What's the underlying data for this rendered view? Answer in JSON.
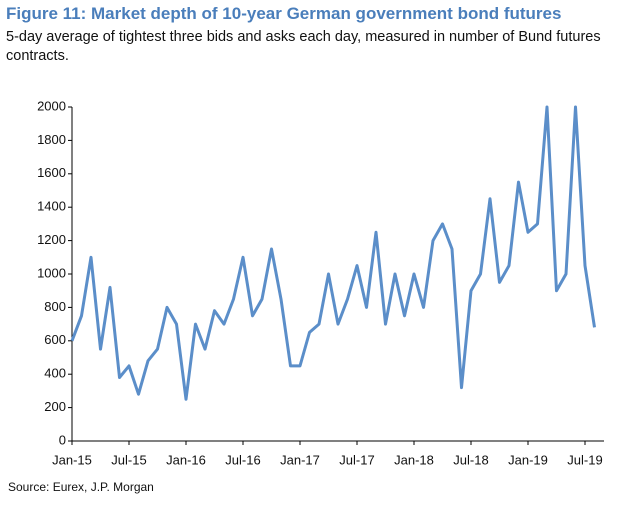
{
  "chart_data": {
    "type": "line",
    "title": "Figure 11: Market depth of 10-year German government bond futures",
    "subtitle": "5-day average of tightest three bids and asks each day, measured in number of Bund futures contracts.",
    "source": "Source: Eurex, J.P. Morgan",
    "x": [
      "2015-01",
      "2015-02",
      "2015-03",
      "2015-04",
      "2015-05",
      "2015-06",
      "2015-07",
      "2015-08",
      "2015-09",
      "2015-10",
      "2015-11",
      "2015-12",
      "2016-01",
      "2016-02",
      "2016-03",
      "2016-04",
      "2016-05",
      "2016-06",
      "2016-07",
      "2016-08",
      "2016-09",
      "2016-10",
      "2016-11",
      "2016-12",
      "2017-01",
      "2017-02",
      "2017-03",
      "2017-04",
      "2017-05",
      "2017-06",
      "2017-07",
      "2017-08",
      "2017-09",
      "2017-10",
      "2017-11",
      "2017-12",
      "2018-01",
      "2018-02",
      "2018-03",
      "2018-04",
      "2018-05",
      "2018-06",
      "2018-07",
      "2018-08",
      "2018-09",
      "2018-10",
      "2018-11",
      "2018-12",
      "2019-01",
      "2019-02",
      "2019-03",
      "2019-04",
      "2019-05",
      "2019-06",
      "2019-07",
      "2019-08"
    ],
    "series": [
      {
        "name": "Market depth",
        "color": "#5b8ec9",
        "values": [
          600,
          750,
          1100,
          550,
          920,
          380,
          450,
          280,
          480,
          550,
          800,
          700,
          250,
          700,
          550,
          780,
          700,
          850,
          1100,
          750,
          850,
          1150,
          850,
          450,
          450,
          650,
          700,
          1000,
          700,
          850,
          1050,
          800,
          1250,
          700,
          1000,
          750,
          1000,
          800,
          1200,
          1300,
          1150,
          320,
          900,
          1000,
          1450,
          950,
          1050,
          1550,
          1250,
          1300,
          2000,
          900,
          1000,
          2000,
          1050,
          680
        ]
      }
    ],
    "xlim": [
      "2015-01",
      "2019-09"
    ],
    "xticks": [
      {
        "value": "2015-01",
        "label": "Jan-15"
      },
      {
        "value": "2015-07",
        "label": "Jul-15"
      },
      {
        "value": "2016-01",
        "label": "Jan-16"
      },
      {
        "value": "2016-07",
        "label": "Jul-16"
      },
      {
        "value": "2017-01",
        "label": "Jan-17"
      },
      {
        "value": "2017-07",
        "label": "Jul-17"
      },
      {
        "value": "2018-01",
        "label": "Jan-18"
      },
      {
        "value": "2018-07",
        "label": "Jul-18"
      },
      {
        "value": "2019-01",
        "label": "Jan-19"
      },
      {
        "value": "2019-07",
        "label": "Jul-19"
      }
    ],
    "ylim": [
      0,
      2000
    ],
    "yticks": [
      0,
      200,
      400,
      600,
      800,
      1000,
      1200,
      1400,
      1600,
      1800,
      2000
    ],
    "grid": false
  }
}
